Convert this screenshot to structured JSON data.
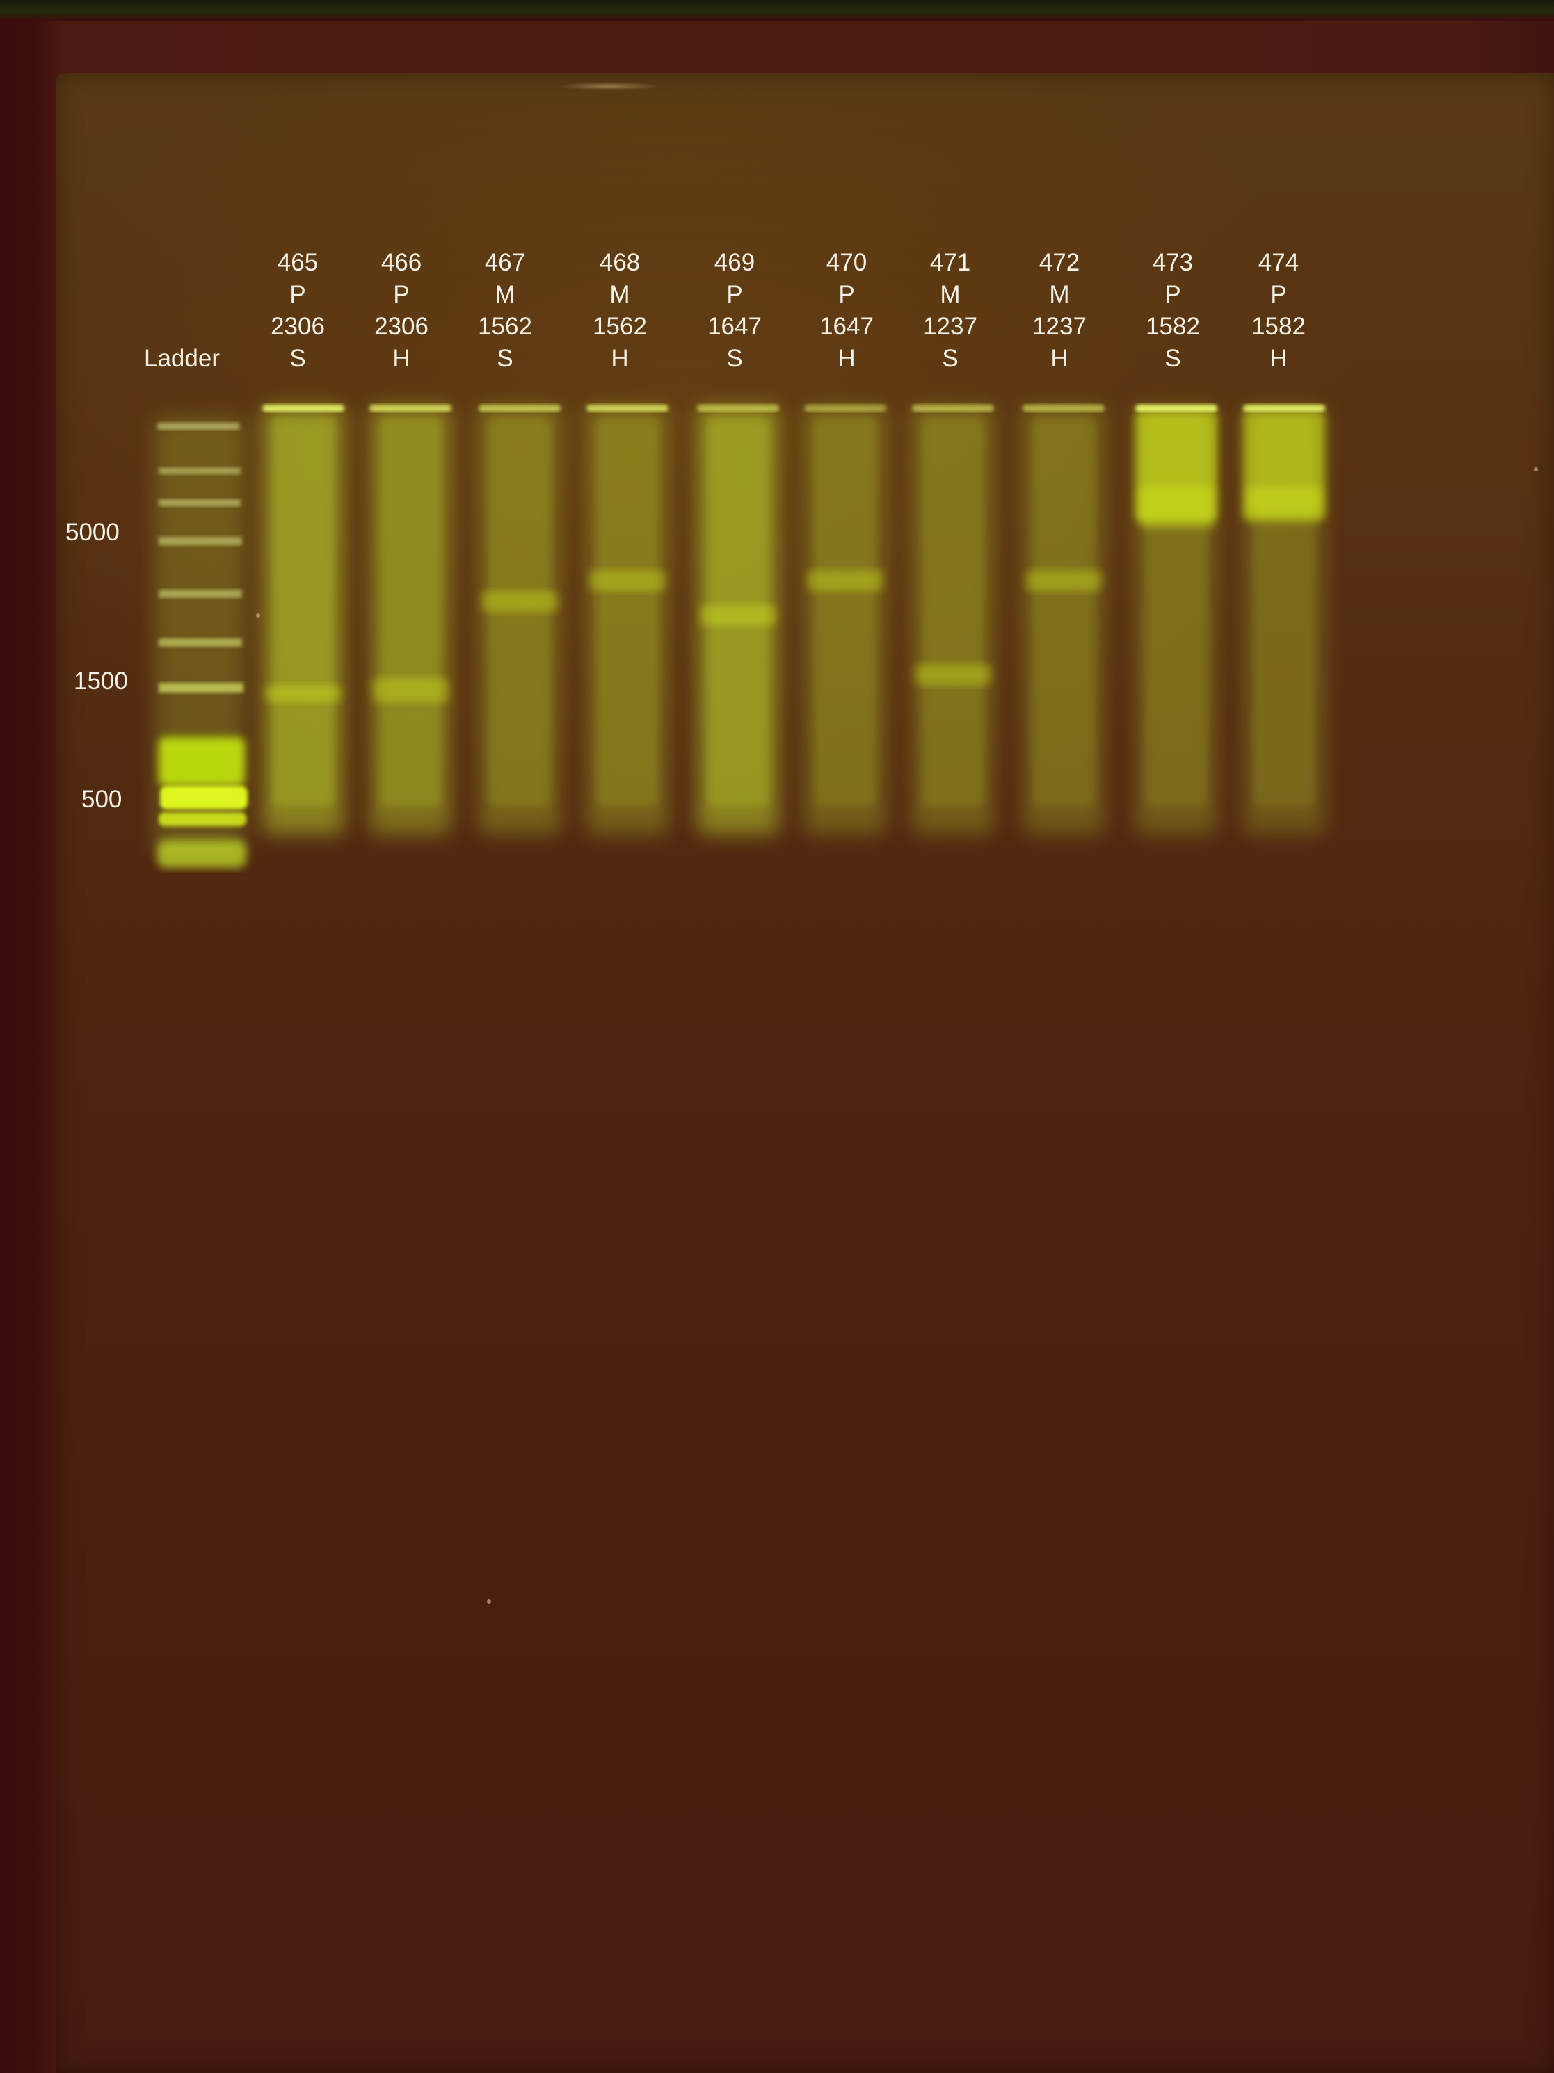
{
  "ladder": {
    "label": "Ladder",
    "marks": [
      {
        "label": "5000"
      },
      {
        "label": "1500"
      },
      {
        "label": "500"
      }
    ]
  },
  "lanes": [
    {
      "id": "465",
      "type": "P",
      "num": "2306",
      "cond": "S"
    },
    {
      "id": "466",
      "type": "P",
      "num": "2306",
      "cond": "H"
    },
    {
      "id": "467",
      "type": "M",
      "num": "1562",
      "cond": "S"
    },
    {
      "id": "468",
      "type": "M",
      "num": "1562",
      "cond": "H"
    },
    {
      "id": "469",
      "type": "P",
      "num": "1647",
      "cond": "S"
    },
    {
      "id": "470",
      "type": "P",
      "num": "1647",
      "cond": "H"
    },
    {
      "id": "471",
      "type": "M",
      "num": "1237",
      "cond": "S"
    },
    {
      "id": "472",
      "type": "M",
      "num": "1237",
      "cond": "H"
    },
    {
      "id": "473",
      "type": "P",
      "num": "1582",
      "cond": "S"
    },
    {
      "id": "474",
      "type": "P",
      "num": "1582",
      "cond": "H"
    }
  ],
  "colors": {
    "band": "#d8f21a",
    "smear": "#b6c42a",
    "label_text": "#f4f1e6"
  }
}
